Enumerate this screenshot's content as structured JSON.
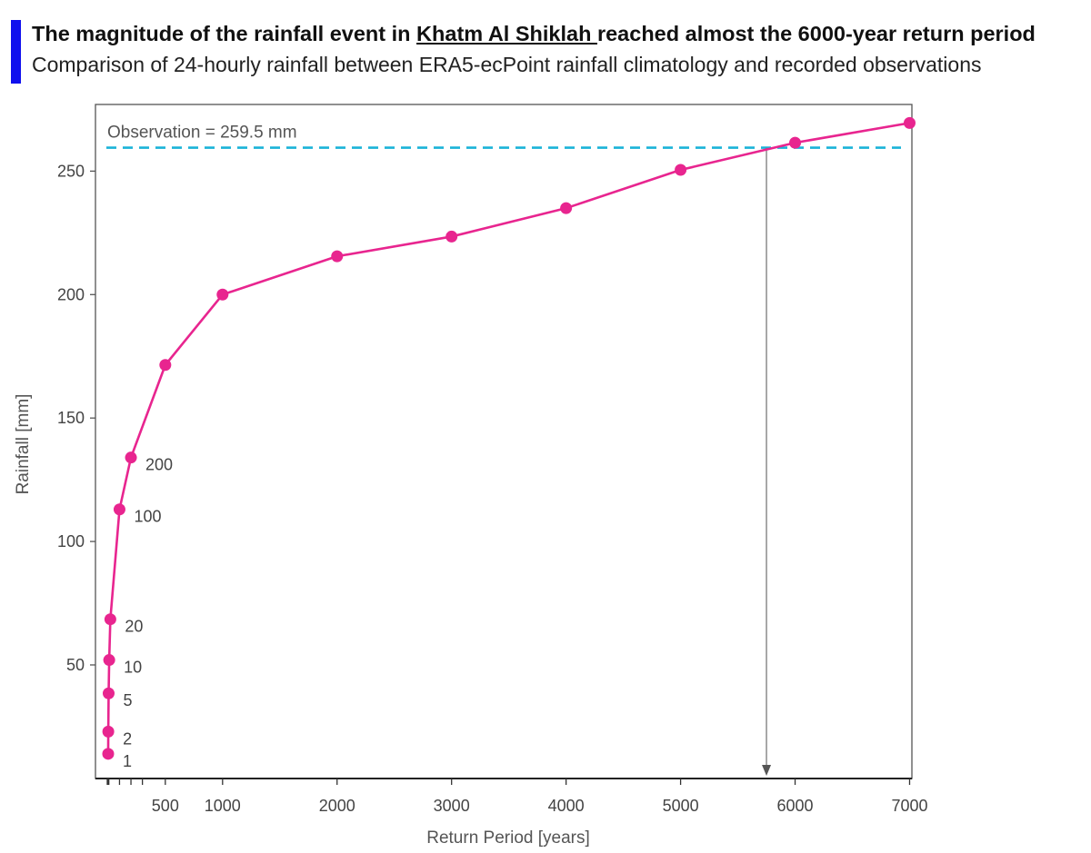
{
  "header": {
    "title_prefix": "The magnitude of the rainfall event in ",
    "title_location": "Khatm Al Shiklah ",
    "title_suffix": "reached almost the 6000-year return period",
    "subtitle": "Comparison of 24-hourly rainfall between ERA5-ecPoint rainfall climatology and recorded observations",
    "accent_color": "#1010ee"
  },
  "chart_data": {
    "type": "line",
    "xlabel": "Return Period [years]",
    "ylabel": "Rainfall [mm]",
    "xlim": [
      -110,
      7020
    ],
    "ylim": [
      4,
      277
    ],
    "x_ticks": [
      500,
      1000,
      2000,
      3000,
      4000,
      5000,
      6000,
      7000
    ],
    "x_minor_ticks": [
      0,
      100,
      200,
      300
    ],
    "y_ticks": [
      50,
      100,
      150,
      200,
      250
    ],
    "grid": false,
    "series": [
      {
        "color": "#e8258f",
        "points": [
          {
            "x": 1,
            "y": 14,
            "label": "1"
          },
          {
            "x": 2,
            "y": 23,
            "label": "2"
          },
          {
            "x": 5,
            "y": 38.5,
            "label": "5"
          },
          {
            "x": 10,
            "y": 52,
            "label": "10"
          },
          {
            "x": 20,
            "y": 68.5,
            "label": "20"
          },
          {
            "x": 100,
            "y": 113,
            "label": "100"
          },
          {
            "x": 200,
            "y": 134,
            "label": "200"
          },
          {
            "x": 500,
            "y": 171.5,
            "label": ""
          },
          {
            "x": 1000,
            "y": 200,
            "label": ""
          },
          {
            "x": 2000,
            "y": 215.5,
            "label": ""
          },
          {
            "x": 3000,
            "y": 223.5,
            "label": ""
          },
          {
            "x": 4000,
            "y": 235,
            "label": ""
          },
          {
            "x": 5000,
            "y": 250.5,
            "label": ""
          },
          {
            "x": 6000,
            "y": 261.5,
            "label": ""
          },
          {
            "x": 7000,
            "y": 269.5,
            "label": ""
          }
        ]
      }
    ],
    "observation": {
      "value": 259.5,
      "label": "Observation = 259.5 mm",
      "color": "#1ab3d8",
      "return_period_marker": 5750
    }
  }
}
